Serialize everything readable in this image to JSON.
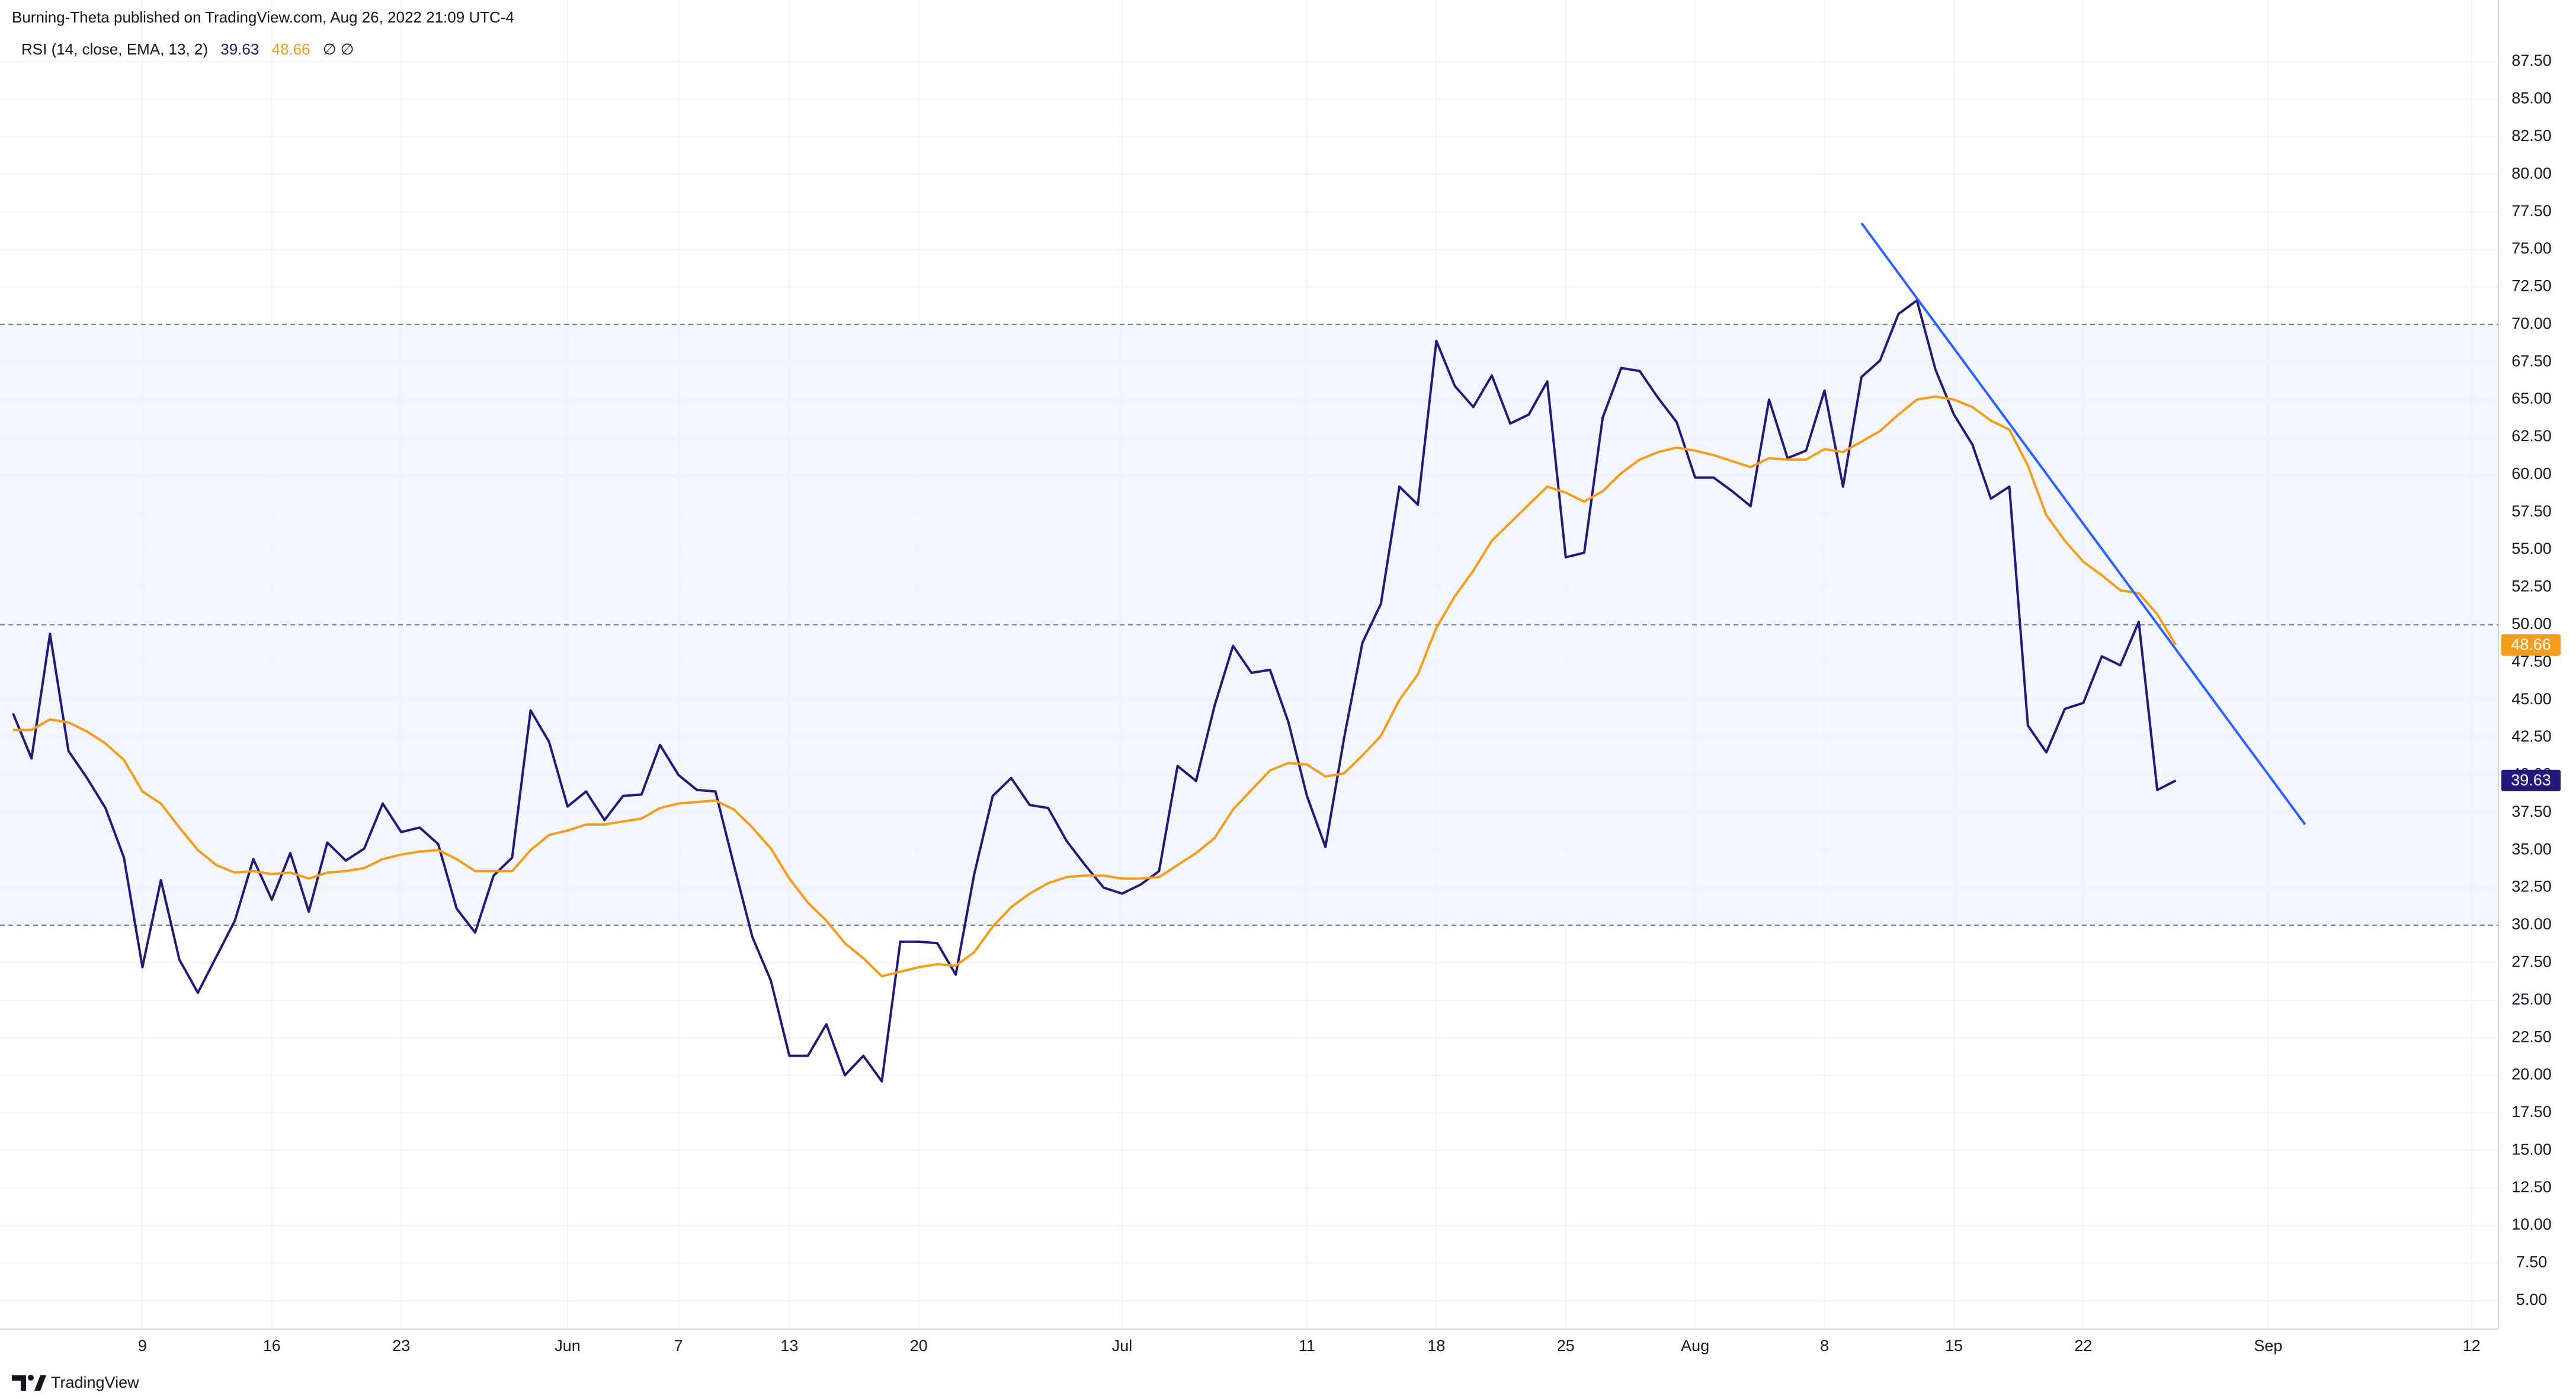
{
  "header": "Burning-Theta published on TradingView.com, Aug 26, 2022 21:09 UTC-4",
  "footer": "TradingView",
  "chart_data": {
    "type": "line",
    "indicator": "RSI (14, close, EMA, 13, 2)",
    "indicator_extra": "∅ ∅",
    "categories": [
      null,
      null,
      null,
      null,
      null,
      null,
      null,
      "9",
      null,
      null,
      null,
      null,
      null,
      null,
      "16",
      null,
      null,
      null,
      null,
      null,
      null,
      "23",
      null,
      null,
      null,
      null,
      null,
      null,
      null,
      null,
      "Jun",
      null,
      null,
      null,
      null,
      null,
      "7",
      null,
      null,
      null,
      null,
      null,
      "13",
      null,
      null,
      null,
      null,
      null,
      null,
      "20",
      null,
      null,
      null,
      null,
      null,
      null,
      null,
      null,
      null,
      null,
      "Jul",
      null,
      null,
      null,
      null,
      null,
      null,
      null,
      null,
      null,
      "11",
      null,
      null,
      null,
      null,
      null,
      null,
      "18",
      null,
      null,
      null,
      null,
      null,
      null,
      "25",
      null,
      null,
      null,
      null,
      null,
      null,
      "Aug",
      null,
      null,
      null,
      null,
      null,
      null,
      "8",
      null,
      null,
      null,
      null,
      null,
      null,
      "15",
      null,
      null,
      null,
      null,
      null,
      null,
      "22",
      null,
      null,
      null,
      null,
      null,
      null,
      null,
      null,
      null,
      "Sep",
      null,
      null,
      null,
      null,
      null,
      null,
      null,
      null,
      null,
      null,
      "12",
      null
    ],
    "series": [
      {
        "color": "#24187a",
        "price_tag": true,
        "values": [
          44.1,
          41.1,
          49.4,
          41.6,
          39.8,
          37.8,
          34.5,
          27.2,
          33.0,
          27.7,
          25.5,
          27.9,
          30.3,
          34.4,
          31.7,
          34.8,
          30.9,
          35.5,
          34.3,
          35.1,
          38.1,
          36.2,
          36.5,
          35.4,
          31.1,
          29.5,
          33.3,
          34.5,
          44.3,
          42.2,
          37.9,
          38.9,
          37.0,
          38.6,
          38.7,
          42.0,
          40.0,
          39.0,
          38.9,
          34.0,
          29.2,
          26.3,
          21.3,
          21.3,
          23.4,
          20.0,
          21.3,
          19.6,
          28.9,
          28.9,
          28.8,
          26.7,
          33.4,
          38.6,
          39.8,
          38.0,
          37.8,
          35.6,
          34.0,
          32.5,
          32.1,
          32.7,
          33.6,
          40.6,
          39.6,
          44.6,
          48.6,
          46.8,
          47.0,
          43.5,
          38.6,
          35.2,
          42.4,
          48.8,
          51.4,
          59.2,
          58.0,
          68.9,
          65.9,
          64.5,
          66.6,
          63.4,
          64.0,
          66.2,
          54.5,
          54.8,
          63.8,
          67.1,
          66.9,
          65.1,
          63.5,
          59.8,
          59.8,
          58.9,
          57.9,
          65.0,
          61.1,
          61.6,
          65.6,
          59.2,
          66.5,
          67.6,
          70.7,
          71.6,
          67.0,
          64.0,
          62.0,
          58.4,
          59.2,
          43.3,
          41.5,
          44.4,
          44.8,
          47.9,
          47.3,
          50.2,
          39.0,
          39.63,
          null,
          null,
          null,
          null,
          null,
          null,
          null,
          null,
          null,
          null,
          null,
          null,
          null,
          null,
          null,
          null,
          null
        ]
      },
      {
        "color": "#f59c1a",
        "price_tag": true,
        "values": [
          43.0,
          43.0,
          43.7,
          43.5,
          42.9,
          42.1,
          41.0,
          38.9,
          38.1,
          36.5,
          35.0,
          34.0,
          33.5,
          33.6,
          33.4,
          33.5,
          33.1,
          33.5,
          33.6,
          33.8,
          34.4,
          34.7,
          34.9,
          35.0,
          34.4,
          33.6,
          33.6,
          33.6,
          35.0,
          36.0,
          36.3,
          36.7,
          36.7,
          36.9,
          37.1,
          37.8,
          38.1,
          38.2,
          38.3,
          37.7,
          36.5,
          35.1,
          33.1,
          31.5,
          30.3,
          28.8,
          27.8,
          26.6,
          26.9,
          27.2,
          27.4,
          27.3,
          28.2,
          29.9,
          31.2,
          32.1,
          32.8,
          33.2,
          33.3,
          33.3,
          33.1,
          33.1,
          33.2,
          34.0,
          34.8,
          35.8,
          37.7,
          39.0,
          40.3,
          40.8,
          40.7,
          39.9,
          40.1,
          41.3,
          42.6,
          45.0,
          46.7,
          49.8,
          51.9,
          53.6,
          55.6,
          56.8,
          58.0,
          59.2,
          58.8,
          58.2,
          58.9,
          60.1,
          61.0,
          61.5,
          61.8,
          61.6,
          61.3,
          60.9,
          60.5,
          61.1,
          61.0,
          61.0,
          61.7,
          61.5,
          62.2,
          62.9,
          64.0,
          65.0,
          65.2,
          65.0,
          64.5,
          63.6,
          63.0,
          60.6,
          57.3,
          55.6,
          54.2,
          53.3,
          52.3,
          52.1,
          50.7,
          48.66,
          null,
          null,
          null,
          null,
          null,
          null,
          null,
          null,
          null,
          null,
          null,
          null,
          null,
          null,
          null,
          null,
          null
        ]
      },
      {
        "color": "#2962ff",
        "values": [
          null,
          null,
          null,
          null,
          null,
          null,
          null,
          null,
          null,
          null,
          null,
          null,
          null,
          null,
          null,
          null,
          null,
          null,
          null,
          null,
          null,
          null,
          null,
          null,
          null,
          null,
          null,
          null,
          null,
          null,
          null,
          null,
          null,
          null,
          null,
          null,
          null,
          null,
          null,
          null,
          null,
          null,
          null,
          null,
          null,
          null,
          null,
          null,
          null,
          null,
          null,
          null,
          null,
          null,
          null,
          null,
          null,
          null,
          null,
          null,
          null,
          null,
          null,
          null,
          null,
          null,
          null,
          null,
          null,
          null,
          null,
          null,
          null,
          null,
          null,
          null,
          null,
          null,
          null,
          null,
          null,
          null,
          null,
          null,
          null,
          null,
          null,
          null,
          null,
          null,
          null,
          null,
          null,
          null,
          null,
          null,
          null,
          null,
          null,
          null,
          76.75,
          75.08,
          73.41,
          71.74,
          70.08,
          68.41,
          66.74,
          65.07,
          63.4,
          61.73,
          60.06,
          58.39,
          56.72,
          55.06,
          53.39,
          51.72,
          50.05,
          48.38,
          46.71,
          45.04,
          43.37,
          41.7,
          40.04,
          38.37,
          36.7,
          null,
          null,
          null,
          null,
          null,
          null,
          null,
          null,
          null,
          null
        ]
      }
    ],
    "ylim": [
      3.1,
      89.2
    ],
    "yticks": [
      {
        "value": 5,
        "label": "5.00"
      },
      {
        "value": 7.5,
        "label": "7.50"
      },
      {
        "value": 10,
        "label": "10.00"
      },
      {
        "value": 12.5,
        "label": "12.50"
      },
      {
        "value": 15,
        "label": "15.00"
      },
      {
        "value": 17.5,
        "label": "17.50"
      },
      {
        "value": 20,
        "label": "20.00"
      },
      {
        "value": 22.5,
        "label": "22.50"
      },
      {
        "value": 25,
        "label": "25.00"
      },
      {
        "value": 27.5,
        "label": "27.50"
      },
      {
        "value": 30,
        "label": "30.00"
      },
      {
        "value": 32.5,
        "label": "32.50"
      },
      {
        "value": 35,
        "label": "35.00"
      },
      {
        "value": 37.5,
        "label": "37.50"
      },
      {
        "value": 40,
        "label": "40.00"
      },
      {
        "value": 42.5,
        "label": "42.50"
      },
      {
        "value": 45,
        "label": "45.00"
      },
      {
        "value": 47.5,
        "label": "47.50"
      },
      {
        "value": 50,
        "label": "50.00"
      },
      {
        "value": 52.5,
        "label": "52.50"
      },
      {
        "value": 55,
        "label": "55.00"
      },
      {
        "value": 57.5,
        "label": "57.50"
      },
      {
        "value": 60,
        "label": "60.00"
      },
      {
        "value": 62.5,
        "label": "62.50"
      },
      {
        "value": 65,
        "label": "65.00"
      },
      {
        "value": 67.5,
        "label": "67.50"
      },
      {
        "value": 70,
        "label": "70.00"
      },
      {
        "value": 72.5,
        "label": "72.50"
      },
      {
        "value": 75,
        "label": "75.00"
      },
      {
        "value": 77.5,
        "label": "77.50"
      },
      {
        "value": 80,
        "label": "80.00"
      },
      {
        "value": 82.5,
        "label": "82.50"
      },
      {
        "value": 85,
        "label": "85.00"
      },
      {
        "value": 87.5,
        "label": "87.50"
      }
    ],
    "hlines": [
      30,
      50,
      70
    ],
    "band": [
      30,
      70
    ],
    "band_color": "#f3f6fe",
    "grid": true
  }
}
